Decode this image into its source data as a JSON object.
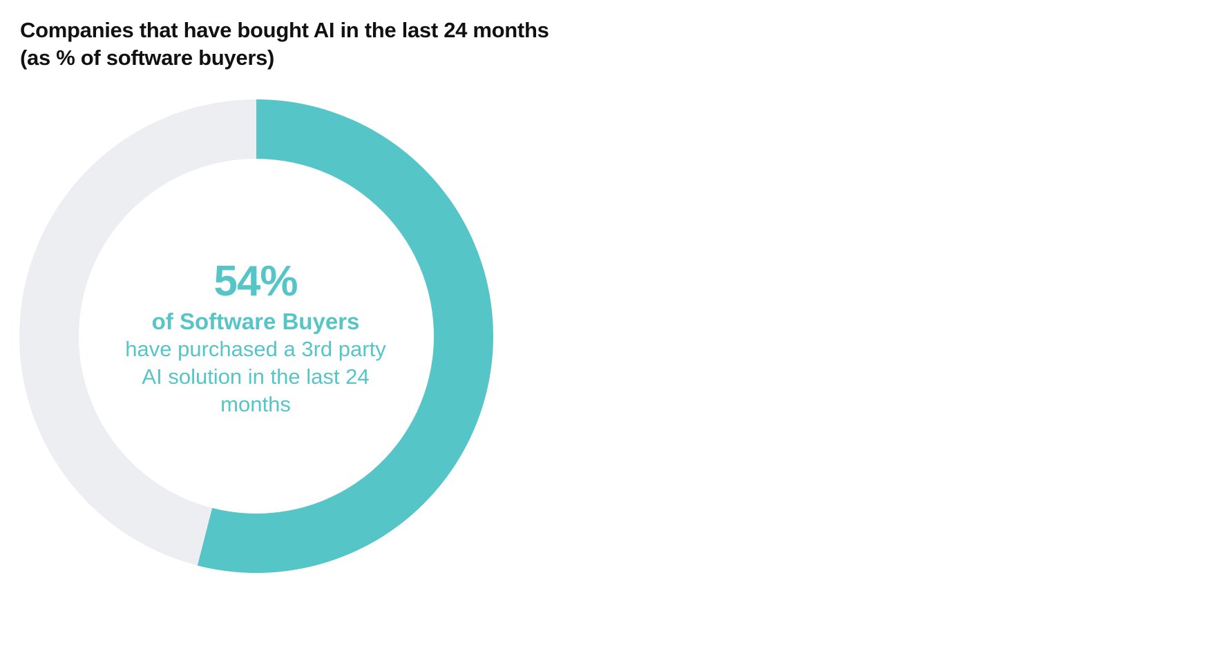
{
  "chart_data": {
    "type": "pie",
    "style": "donut",
    "title": "Companies that have bought AI in the last 24 months",
    "subtitle": "(as % of software buyers)",
    "slices": [
      {
        "value": 54,
        "color": "#55c5c7"
      },
      {
        "value": 46,
        "color": "#eceef1"
      }
    ],
    "start_angle": "12 o'clock",
    "direction": "clockwise",
    "center_text": {
      "value": "54%",
      "label": "of Software Buyers",
      "description": "have purchased a 3rd party AI solution in the last 24 months"
    },
    "colors": {
      "accent": "#55c5c7",
      "remainder": "#eceef1",
      "title": "#111111"
    }
  }
}
